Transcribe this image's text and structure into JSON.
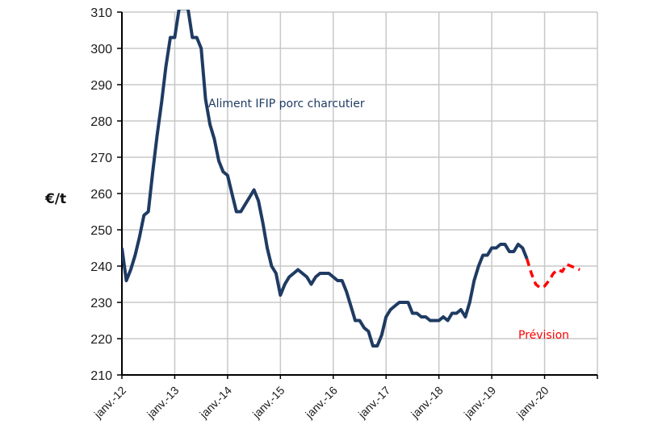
{
  "chart_data": {
    "type": "line",
    "title": "",
    "xlabel": "",
    "ylabel": "€/t",
    "ylim": [
      210,
      310
    ],
    "yticks": [
      210,
      220,
      230,
      240,
      250,
      260,
      270,
      280,
      290,
      300,
      310
    ],
    "xticks": [
      "janv.-12",
      "janv.-13",
      "janv.-14",
      "janv.-15",
      "janv.-16",
      "janv.-17",
      "janv.-18",
      "janv.-19",
      "janv.-20"
    ],
    "grid": true,
    "legend": "none (inline annotations)",
    "x_start": "janv.-12",
    "x_step": "month",
    "series": [
      {
        "name": "Aliment IFIP porc charcutier",
        "style": "solid",
        "color": "#1f3b63",
        "start_month_index": 0,
        "values": [
          245,
          236,
          239,
          243,
          248,
          254,
          255,
          266,
          276,
          285,
          295,
          303,
          303,
          311,
          311,
          311,
          303,
          303,
          300,
          286,
          279,
          275,
          269,
          266,
          265,
          260,
          255,
          255,
          257,
          259,
          261,
          258,
          252,
          245,
          240,
          238,
          232,
          235,
          237,
          238,
          239,
          238,
          237,
          235,
          237,
          238,
          238,
          238,
          237,
          236,
          236,
          233,
          229,
          225,
          225,
          223,
          222,
          218,
          218,
          221,
          226,
          228,
          229,
          230,
          230,
          230,
          227,
          227,
          226,
          226,
          225,
          225,
          225,
          226,
          225,
          227,
          227,
          228,
          226,
          230,
          236,
          240,
          243,
          243,
          245,
          245,
          246,
          246,
          244,
          244,
          246,
          245,
          242
        ]
      },
      {
        "name": "Prévision",
        "style": "dashed",
        "color": "#ff0000",
        "start_month_index": 92,
        "values": [
          242,
          238,
          235,
          234,
          234.5,
          236,
          238,
          239,
          238.5,
          240.5,
          240,
          239.5,
          239
        ]
      }
    ],
    "annotations": [
      {
        "text": "Aliment IFIP porc charcutier",
        "color": "#1f3b63"
      },
      {
        "text": "Prévision",
        "color": "#ff0000"
      }
    ]
  }
}
